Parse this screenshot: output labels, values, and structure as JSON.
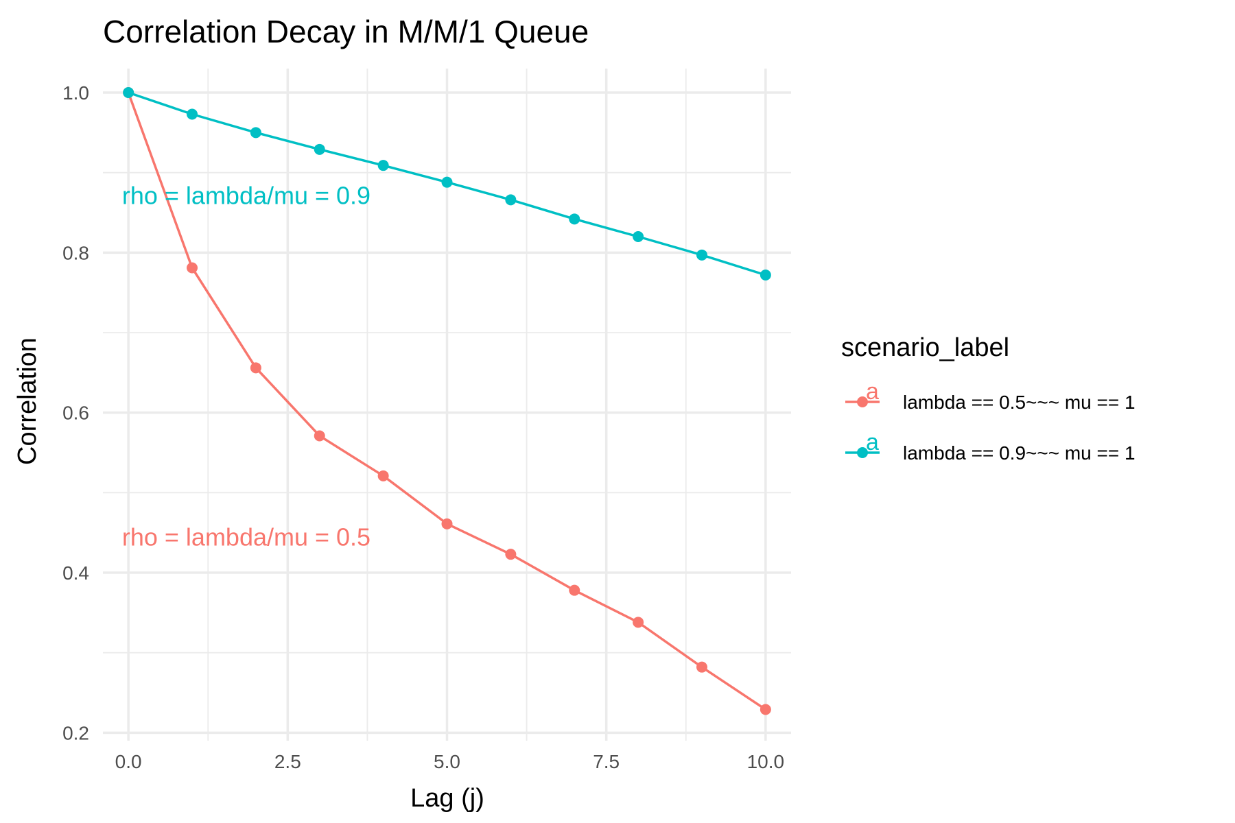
{
  "chart_data": {
    "type": "line",
    "title": "Correlation Decay in M/M/1 Queue",
    "xlabel": "Lag (j)",
    "ylabel": "Correlation",
    "xlim": [
      -0.4,
      10.4
    ],
    "ylim": [
      0.19,
      1.03
    ],
    "x_ticks": [
      0,
      2.5,
      5,
      7.5,
      10
    ],
    "x_tick_labels": [
      "0.0",
      "2.5",
      "5.0",
      "7.5",
      "10.0"
    ],
    "y_ticks": [
      0.2,
      0.4,
      0.6,
      0.8,
      1.0
    ],
    "y_tick_labels": [
      "0.2",
      "0.4",
      "0.6",
      "0.8",
      "1.0"
    ],
    "grid": true,
    "legend": {
      "title": "scenario_label",
      "position": "right",
      "key_glyph": "a"
    },
    "series": [
      {
        "name": "lambda == 0.5~~~ mu == 1",
        "color": "#F8766D",
        "x": [
          0,
          1,
          2,
          3,
          4,
          5,
          6,
          7,
          8,
          9,
          10
        ],
        "y": [
          1.0,
          0.781,
          0.656,
          0.571,
          0.521,
          0.461,
          0.423,
          0.378,
          0.338,
          0.282,
          0.229
        ]
      },
      {
        "name": "lambda == 0.9~~~ mu == 1",
        "color": "#00BFC4",
        "x": [
          0,
          1,
          2,
          3,
          4,
          5,
          6,
          7,
          8,
          9,
          10
        ],
        "y": [
          1.0,
          0.973,
          0.95,
          0.929,
          0.909,
          0.888,
          0.866,
          0.842,
          0.82,
          0.797,
          0.772
        ]
      }
    ],
    "annotations": [
      {
        "text": "rho = lambda/mu = 0.5",
        "x": -0.1,
        "y": 0.445,
        "color": "#F8766D"
      },
      {
        "text": "rho = lambda/mu = 0.9",
        "x": -0.1,
        "y": 0.872,
        "color": "#00BFC4"
      }
    ]
  }
}
